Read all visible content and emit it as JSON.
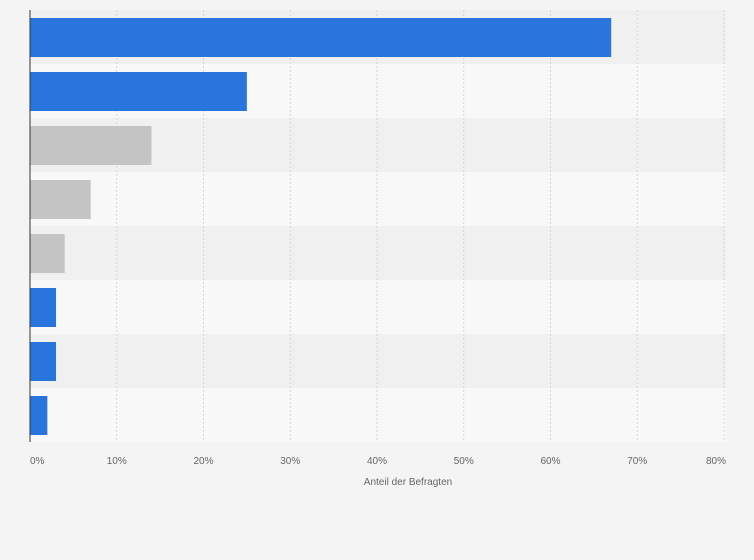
{
  "chart_data": {
    "type": "bar",
    "orientation": "horizontal",
    "categories": [
      "",
      "",
      "",
      "",
      "",
      "",
      "",
      ""
    ],
    "values": [
      67,
      25,
      14,
      7,
      4,
      3,
      3,
      2
    ],
    "bar_colors": [
      "#2876dd",
      "#2876dd",
      "#c4c4c4",
      "#c4c4c4",
      "#c4c4c4",
      "#2876dd",
      "#2876dd",
      "#2876dd"
    ],
    "xlim": [
      0,
      80
    ],
    "xticks": [
      "0%",
      "10%",
      "20%",
      "30%",
      "40%",
      "50%",
      "60%",
      "70%",
      "80%"
    ],
    "xlabel": "Anteil der Befragten",
    "ylabel": "",
    "title": "",
    "grid": true,
    "legend": "none"
  },
  "colors": {
    "background": "#f4f4f4",
    "band_dark": "#f0f0f0",
    "band_light": "#f8f8f8",
    "gridline": "#d5d5d5",
    "axis": "#333333"
  }
}
